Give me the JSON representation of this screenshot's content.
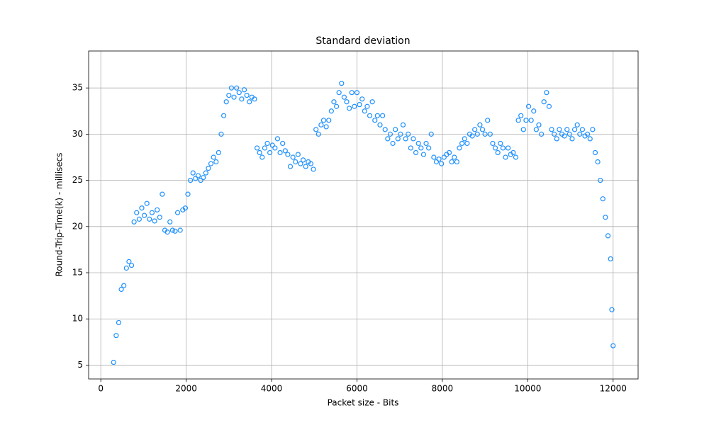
{
  "chart_data": {
    "type": "scatter",
    "title": "Standard deviation",
    "x_label": "Packet size - Bits",
    "y_label": "Round-Trip-Time(k) - millisecs",
    "color": "#1e90ff",
    "grid": true,
    "xlim": [
      -285,
      12585
    ],
    "ylim": [
      3.5,
      39
    ],
    "xticks": [
      0,
      2000,
      4000,
      6000,
      8000,
      10000,
      12000
    ],
    "yticks": [
      5,
      10,
      15,
      20,
      25,
      30,
      35
    ],
    "x": [
      300,
      360,
      420,
      480,
      540,
      600,
      660,
      720,
      780,
      840,
      900,
      960,
      1020,
      1080,
      1140,
      1200,
      1260,
      1320,
      1380,
      1440,
      1500,
      1560,
      1620,
      1680,
      1740,
      1800,
      1860,
      1920,
      1980,
      2040,
      2100,
      2160,
      2220,
      2280,
      2340,
      2400,
      2460,
      2520,
      2580,
      2640,
      2700,
      2760,
      2820,
      2880,
      2940,
      3000,
      3060,
      3120,
      3180,
      3240,
      3300,
      3360,
      3420,
      3480,
      3540,
      3600,
      3660,
      3720,
      3780,
      3840,
      3900,
      3960,
      4020,
      4080,
      4140,
      4200,
      4260,
      4320,
      4380,
      4440,
      4500,
      4560,
      4620,
      4680,
      4740,
      4800,
      4860,
      4920,
      4980,
      5040,
      5100,
      5160,
      5220,
      5280,
      5340,
      5400,
      5460,
      5520,
      5580,
      5640,
      5700,
      5760,
      5820,
      5880,
      5940,
      6000,
      6060,
      6120,
      6180,
      6240,
      6300,
      6360,
      6420,
      6480,
      6540,
      6600,
      6660,
      6720,
      6780,
      6840,
      6900,
      6960,
      7020,
      7080,
      7140,
      7200,
      7260,
      7320,
      7380,
      7440,
      7500,
      7560,
      7620,
      7680,
      7740,
      7800,
      7860,
      7920,
      7980,
      8040,
      8100,
      8160,
      8220,
      8280,
      8340,
      8400,
      8460,
      8520,
      8580,
      8640,
      8700,
      8760,
      8820,
      8880,
      8940,
      9000,
      9060,
      9120,
      9180,
      9240,
      9300,
      9360,
      9420,
      9480,
      9540,
      9600,
      9660,
      9720,
      9780,
      9840,
      9900,
      9960,
      10020,
      10080,
      10140,
      10200,
      10260,
      10320,
      10380,
      10440,
      10500,
      10560,
      10620,
      10680,
      10740,
      10800,
      10860,
      10920,
      10980,
      11040,
      11100,
      11160,
      11220,
      11280,
      11340,
      11400,
      11460,
      11520,
      11580,
      11640,
      11700,
      11760,
      11820,
      11880,
      11940,
      11970,
      12000
    ],
    "values": [
      5.3,
      8.2,
      9.6,
      13.2,
      13.6,
      15.5,
      16.2,
      15.8,
      20.5,
      21.5,
      20.8,
      22.0,
      21.2,
      22.5,
      20.8,
      21.5,
      20.6,
      21.8,
      21.0,
      23.5,
      19.6,
      19.4,
      20.5,
      19.6,
      19.5,
      21.5,
      19.6,
      21.8,
      22.0,
      23.5,
      25.0,
      25.8,
      25.2,
      25.5,
      25.0,
      25.3,
      25.8,
      26.3,
      26.8,
      27.5,
      27.0,
      28.0,
      30.0,
      32.0,
      33.5,
      34.2,
      35.0,
      34.0,
      35.0,
      34.5,
      33.8,
      34.8,
      34.2,
      33.5,
      34.0,
      33.8,
      28.5,
      28.0,
      27.5,
      28.5,
      29.0,
      28.0,
      28.8,
      28.5,
      29.5,
      28.0,
      29.0,
      28.2,
      27.8,
      26.5,
      27.5,
      27.0,
      27.8,
      26.8,
      27.2,
      26.5,
      27.0,
      26.8,
      26.2,
      30.5,
      30.0,
      31.0,
      31.5,
      30.8,
      31.5,
      32.5,
      33.5,
      33.0,
      34.5,
      35.5,
      34.0,
      33.5,
      32.8,
      34.5,
      33.0,
      34.5,
      33.2,
      33.8,
      32.5,
      33.0,
      32.0,
      33.5,
      31.5,
      32.0,
      31.0,
      32.0,
      30.5,
      29.5,
      30.0,
      29.0,
      30.5,
      29.5,
      30.0,
      31.0,
      29.5,
      30.0,
      28.5,
      29.5,
      28.0,
      29.0,
      28.5,
      27.8,
      29.0,
      28.5,
      30.0,
      27.5,
      27.0,
      27.3,
      26.8,
      27.5,
      27.8,
      28.0,
      27.0,
      27.5,
      27.0,
      28.5,
      29.0,
      29.5,
      29.0,
      30.0,
      29.8,
      30.5,
      30.0,
      31.0,
      30.5,
      30.0,
      31.5,
      30.0,
      29.0,
      28.5,
      28.0,
      29.0,
      28.5,
      27.5,
      28.5,
      27.8,
      28.0,
      27.5,
      31.5,
      32.0,
      30.5,
      31.5,
      33.0,
      31.5,
      32.5,
      30.5,
      31.0,
      30.0,
      33.5,
      34.5,
      33.0,
      30.5,
      30.0,
      29.5,
      30.5,
      30.0,
      29.8,
      30.5,
      30.0,
      29.5,
      30.5,
      31.0,
      30.0,
      30.5,
      29.8,
      30.0,
      29.5,
      30.5,
      28.0,
      27.0,
      25.0,
      23.0,
      21.0,
      19.0,
      16.5,
      11.0,
      7.1
    ]
  }
}
